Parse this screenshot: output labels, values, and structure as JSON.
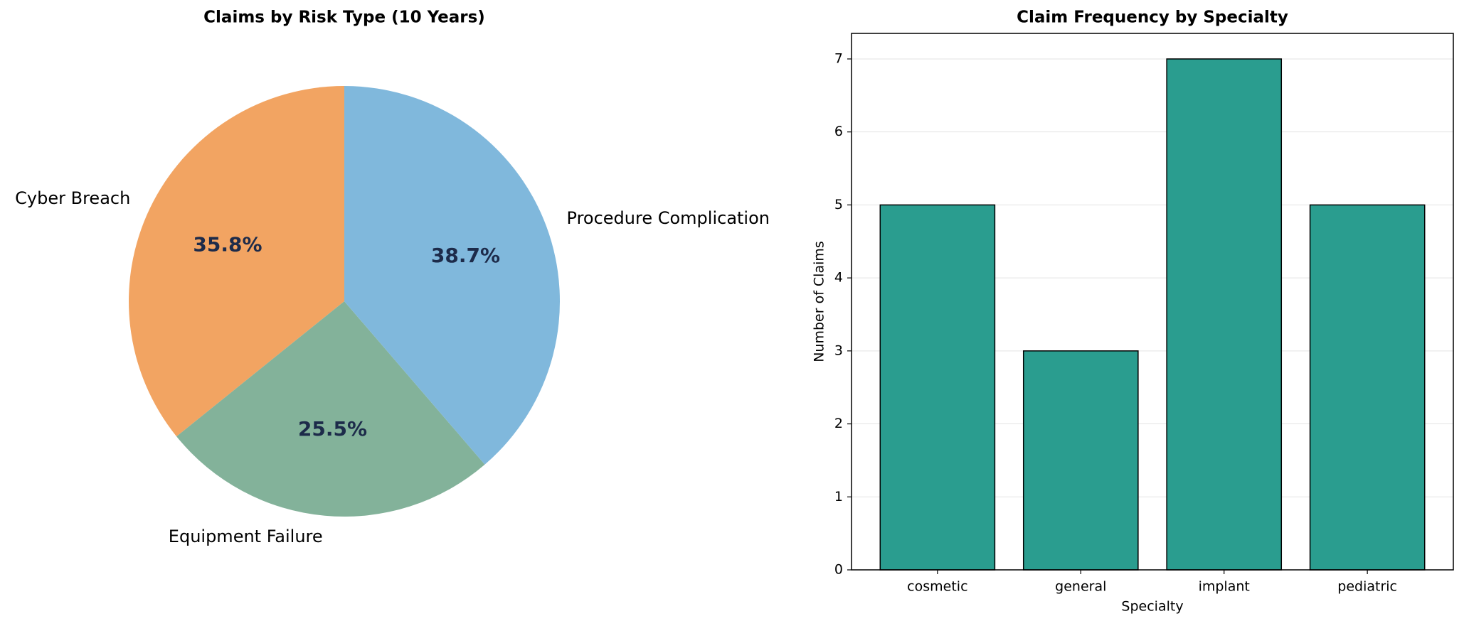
{
  "chart_data": [
    {
      "type": "pie",
      "title": "Claims by Risk Type (10 Years)",
      "categories": [
        "Cyber Breach",
        "Equipment Failure",
        "Procedure Complication"
      ],
      "values": [
        35.8,
        25.5,
        38.7
      ],
      "value_labels": [
        "35.8%",
        "25.5%",
        "38.7%"
      ],
      "colors": [
        "#f2a462",
        "#83b29a",
        "#80b8dc"
      ]
    },
    {
      "type": "bar",
      "title": "Claim Frequency by Specialty",
      "x_label": "Specialty",
      "y_label": "Number of Claims",
      "categories": [
        "cosmetic",
        "general",
        "implant",
        "pediatric"
      ],
      "values": [
        5,
        3,
        7,
        5
      ],
      "color": "#2a9d8f",
      "ylim": [
        0,
        7.35
      ],
      "yticks": [
        0,
        1,
        2,
        3,
        4,
        5,
        6,
        7
      ],
      "grid": true
    }
  ]
}
